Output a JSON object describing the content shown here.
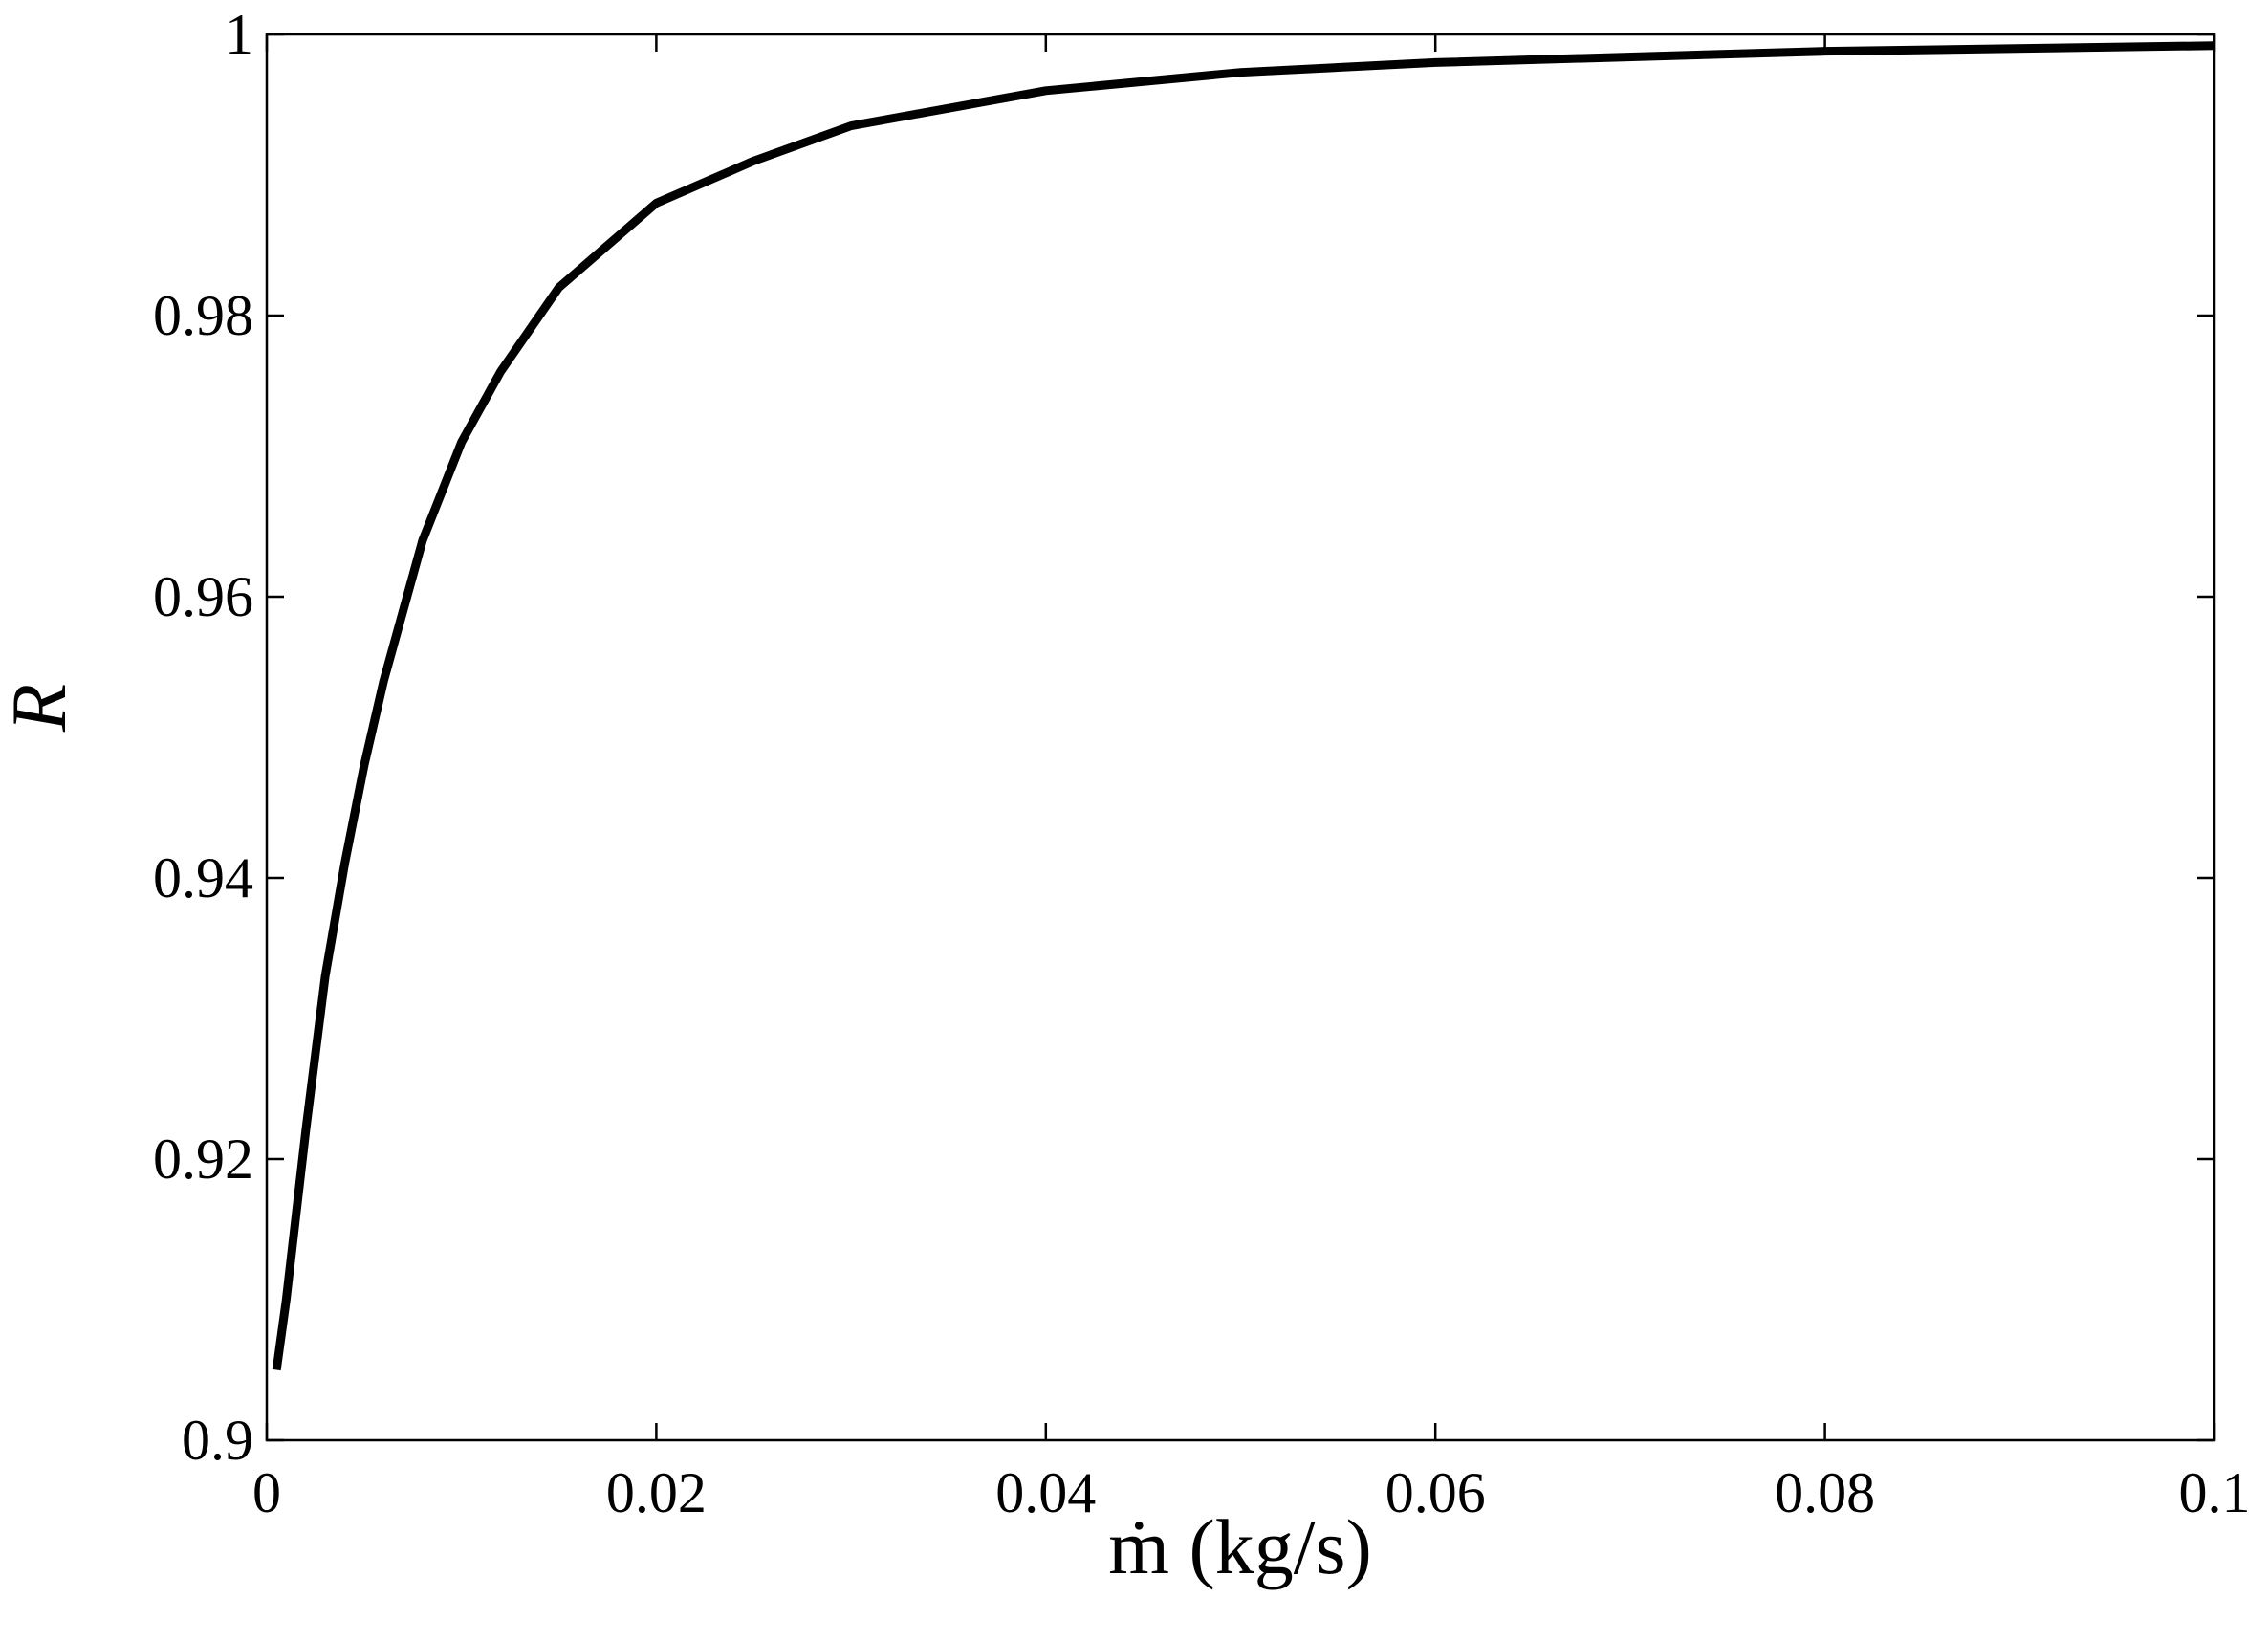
{
  "chart_data": {
    "type": "line",
    "x_label": "ṁ (kg/s)",
    "y_label": "R",
    "xlim": [
      0,
      0.1
    ],
    "ylim": [
      0.9,
      1
    ],
    "xticks": [
      0,
      0.02,
      0.04,
      0.06,
      0.08,
      0.1
    ],
    "yticks": [
      0.9,
      0.92,
      0.94,
      0.96,
      0.98,
      1
    ],
    "grid": false,
    "series": [
      {
        "color": "#000000",
        "x": [
          0.0005,
          0.001,
          0.002,
          0.003,
          0.004,
          0.005,
          0.006,
          0.008,
          0.01,
          0.012,
          0.015,
          0.02,
          0.025,
          0.03,
          0.04,
          0.05,
          0.06,
          0.08,
          0.1
        ],
        "values": [
          0.905,
          0.91,
          0.922,
          0.933,
          0.941,
          0.948,
          0.954,
          0.964,
          0.971,
          0.976,
          0.982,
          0.988,
          0.991,
          0.9935,
          0.996,
          0.9973,
          0.998,
          0.9988,
          0.9992
        ]
      }
    ]
  }
}
